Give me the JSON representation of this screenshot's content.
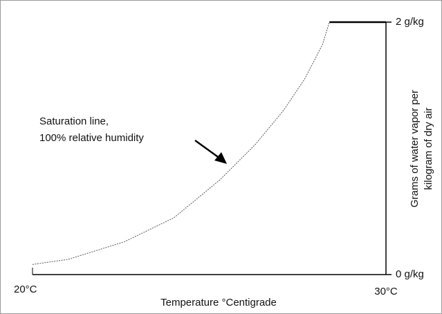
{
  "chart_data": {
    "type": "line",
    "xlabel": "Temperature °Centigrade",
    "ylabel": [
      "Grams of water vapor per",
      "kilogram of dry air"
    ],
    "annotation": [
      "Saturation line,",
      "100% relative humidity"
    ],
    "xlim": [
      20,
      30
    ],
    "ylim": [
      0,
      2
    ],
    "xticks": [
      {
        "value": 20,
        "label": "20°C"
      },
      {
        "value": 30,
        "label": "30°C"
      }
    ],
    "yticks": [
      {
        "value": 0,
        "label": "0 g/kg"
      },
      {
        "value": 2,
        "label": "2 g/kg"
      }
    ],
    "series": [
      {
        "color": "#555555",
        "x": [
          20,
          21,
          22.6,
          24,
          25.3,
          26.3,
          27.1,
          27.7,
          28.2,
          28.4
        ],
        "values": [
          0.08,
          0.12,
          0.26,
          0.45,
          0.75,
          1.03,
          1.3,
          1.55,
          1.82,
          2
        ]
      },
      {
        "color": "#000000",
        "x": [
          28.4,
          30
        ],
        "values": [
          2,
          2
        ]
      }
    ]
  }
}
